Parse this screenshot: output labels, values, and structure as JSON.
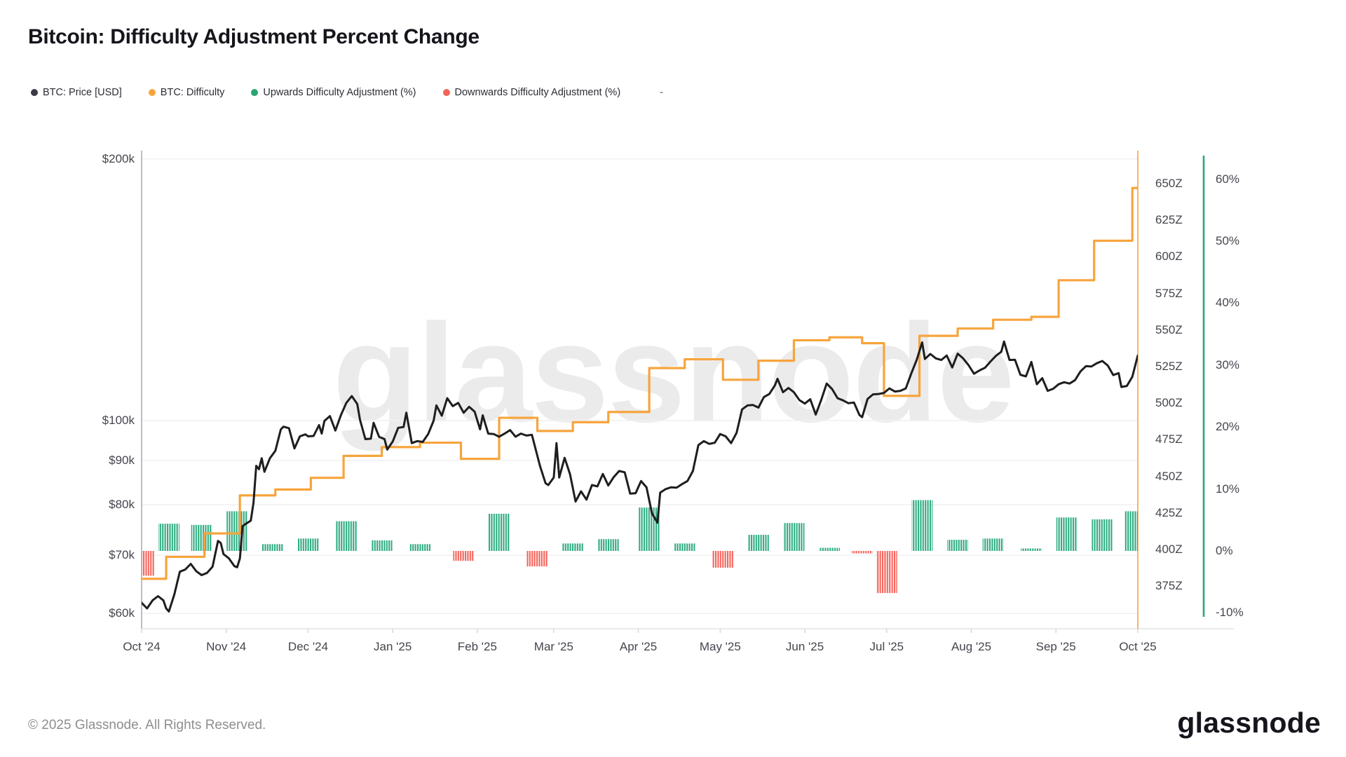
{
  "title": "Bitcoin: Difficulty Adjustment Percent Change",
  "legend": {
    "items": [
      {
        "label": "BTC: Price [USD]",
        "color": "#3a3a42"
      },
      {
        "label": "BTC: Difficulty",
        "color": "#F7A43C"
      },
      {
        "label": "Upwards Difficulty Adjustment (%)",
        "color": "#27A671"
      },
      {
        "label": "Downwards Difficulty Adjustment (%)",
        "color": "#F4635A"
      }
    ],
    "extra": "-"
  },
  "watermark": "glassnode",
  "footer": {
    "copyright": "© 2025 Glassnode. All Rights Reserved.",
    "brand": "glassnode"
  },
  "chart_data": {
    "type": "composite",
    "title": "Bitcoin: Difficulty Adjustment Percent Change",
    "x_axis": {
      "labels": [
        "Oct '24",
        "Nov '24",
        "Dec '24",
        "Jan '25",
        "Feb '25",
        "Mar '25",
        "Apr '25",
        "May '25",
        "Jun '25",
        "Jul '25",
        "Aug '25",
        "Sep '25",
        "Oct '25"
      ],
      "days": [
        0,
        31,
        61,
        92,
        123,
        151,
        182,
        212,
        243,
        273,
        304,
        335,
        365
      ],
      "start_date": "2024-10-01",
      "end_date": "2025-10-03"
    },
    "price_axis": {
      "scale": "log",
      "ticks": [
        {
          "label": "$200k",
          "value": 200
        },
        {
          "label": "$100k",
          "value": 100
        },
        {
          "label": "$90k",
          "value": 90
        },
        {
          "label": "$80k",
          "value": 80
        },
        {
          "label": "$70k",
          "value": 70
        },
        {
          "label": "$60k",
          "value": 60
        }
      ]
    },
    "difficulty_axis": {
      "unit": "Z",
      "ticks": [
        650,
        625,
        600,
        575,
        550,
        525,
        500,
        475,
        450,
        425,
        400,
        375
      ]
    },
    "percent_axis": {
      "unit": "%",
      "ticks": [
        60,
        50,
        40,
        30,
        20,
        10,
        0,
        -10
      ]
    },
    "series": {
      "price": {
        "name": "BTC: Price [USD]",
        "color": "#1e1e1e",
        "unit": "$k",
        "points": [
          [
            0,
            61.7
          ],
          [
            2,
            60.8
          ],
          [
            4,
            62.1
          ],
          [
            6,
            62.8
          ],
          [
            8,
            62.1
          ],
          [
            9,
            60.8
          ],
          [
            10,
            60.3
          ],
          [
            12,
            63.1
          ],
          [
            14,
            67.0
          ],
          [
            16,
            67.4
          ],
          [
            18,
            68.4
          ],
          [
            20,
            67.1
          ],
          [
            22,
            66.4
          ],
          [
            24,
            66.8
          ],
          [
            26,
            67.9
          ],
          [
            28,
            72.7
          ],
          [
            29,
            72.3
          ],
          [
            30,
            70.2
          ],
          [
            32,
            69.4
          ],
          [
            34,
            68.0
          ],
          [
            35,
            67.8
          ],
          [
            36,
            69.4
          ],
          [
            37,
            75.6
          ],
          [
            38,
            76.0
          ],
          [
            40,
            76.7
          ],
          [
            41,
            80.4
          ],
          [
            42,
            88.7
          ],
          [
            43,
            87.9
          ],
          [
            44,
            90.5
          ],
          [
            45,
            87.3
          ],
          [
            47,
            90.5
          ],
          [
            49,
            92.3
          ],
          [
            51,
            97.7
          ],
          [
            52,
            98.4
          ],
          [
            54,
            98.0
          ],
          [
            56,
            92.9
          ],
          [
            58,
            95.9
          ],
          [
            60,
            96.4
          ],
          [
            61,
            95.9
          ],
          [
            63,
            96.0
          ],
          [
            65,
            98.8
          ],
          [
            66,
            96.6
          ],
          [
            67,
            99.9
          ],
          [
            69,
            101.2
          ],
          [
            71,
            97.4
          ],
          [
            73,
            101.4
          ],
          [
            75,
            104.8
          ],
          [
            77,
            106.7
          ],
          [
            79,
            104.5
          ],
          [
            80,
            100.2
          ],
          [
            82,
            95.2
          ],
          [
            84,
            95.3
          ],
          [
            85,
            99.4
          ],
          [
            87,
            95.8
          ],
          [
            89,
            95.2
          ],
          [
            90,
            92.6
          ],
          [
            92,
            94.6
          ],
          [
            94,
            98.1
          ],
          [
            96,
            98.3
          ],
          [
            97,
            102.1
          ],
          [
            99,
            94.2
          ],
          [
            101,
            94.7
          ],
          [
            103,
            94.5
          ],
          [
            105,
            96.5
          ],
          [
            107,
            100.0
          ],
          [
            108,
            104.1
          ],
          [
            110,
            101.3
          ],
          [
            112,
            106.1
          ],
          [
            114,
            103.9
          ],
          [
            116,
            104.8
          ],
          [
            118,
            102.1
          ],
          [
            120,
            103.7
          ],
          [
            122,
            102.4
          ],
          [
            124,
            97.7
          ],
          [
            125,
            101.4
          ],
          [
            127,
            96.6
          ],
          [
            129,
            96.5
          ],
          [
            131,
            95.8
          ],
          [
            133,
            96.6
          ],
          [
            135,
            97.5
          ],
          [
            137,
            95.8
          ],
          [
            139,
            96.6
          ],
          [
            141,
            96.1
          ],
          [
            143,
            96.3
          ],
          [
            146,
            88.6
          ],
          [
            148,
            84.7
          ],
          [
            149,
            84.3
          ],
          [
            151,
            86.0
          ],
          [
            152,
            94.2
          ],
          [
            153,
            86.0
          ],
          [
            155,
            90.6
          ],
          [
            157,
            86.7
          ],
          [
            159,
            80.7
          ],
          [
            161,
            82.9
          ],
          [
            163,
            81.1
          ],
          [
            165,
            84.3
          ],
          [
            167,
            84.0
          ],
          [
            169,
            86.8
          ],
          [
            171,
            84.2
          ],
          [
            173,
            86.1
          ],
          [
            175,
            87.5
          ],
          [
            177,
            87.2
          ],
          [
            179,
            82.4
          ],
          [
            181,
            82.5
          ],
          [
            183,
            85.2
          ],
          [
            185,
            83.8
          ],
          [
            187,
            78.2
          ],
          [
            189,
            76.3
          ],
          [
            190,
            82.6
          ],
          [
            192,
            83.4
          ],
          [
            194,
            83.8
          ],
          [
            196,
            83.7
          ],
          [
            198,
            84.5
          ],
          [
            200,
            85.2
          ],
          [
            202,
            87.5
          ],
          [
            204,
            93.7
          ],
          [
            206,
            94.7
          ],
          [
            208,
            94.0
          ],
          [
            210,
            94.3
          ],
          [
            212,
            96.5
          ],
          [
            214,
            95.9
          ],
          [
            216,
            94.2
          ],
          [
            218,
            96.8
          ],
          [
            220,
            103.0
          ],
          [
            222,
            104.1
          ],
          [
            224,
            104.2
          ],
          [
            226,
            103.5
          ],
          [
            228,
            106.4
          ],
          [
            230,
            107.3
          ],
          [
            232,
            109.7
          ],
          [
            233,
            111.7
          ],
          [
            235,
            107.8
          ],
          [
            237,
            109.0
          ],
          [
            239,
            107.8
          ],
          [
            241,
            105.6
          ],
          [
            243,
            104.6
          ],
          [
            245,
            105.8
          ],
          [
            247,
            101.6
          ],
          [
            249,
            105.6
          ],
          [
            251,
            110.3
          ],
          [
            253,
            108.7
          ],
          [
            255,
            106.1
          ],
          [
            257,
            105.5
          ],
          [
            259,
            104.7
          ],
          [
            261,
            104.9
          ],
          [
            263,
            101.5
          ],
          [
            264,
            100.9
          ],
          [
            266,
            105.9
          ],
          [
            268,
            107.2
          ],
          [
            270,
            107.3
          ],
          [
            272,
            107.6
          ],
          [
            274,
            108.9
          ],
          [
            276,
            108.0
          ],
          [
            278,
            108.2
          ],
          [
            280,
            108.9
          ],
          [
            282,
            113.3
          ],
          [
            284,
            117.5
          ],
          [
            286,
            123.0
          ],
          [
            287,
            117.7
          ],
          [
            289,
            119.3
          ],
          [
            291,
            117.9
          ],
          [
            293,
            117.4
          ],
          [
            295,
            118.8
          ],
          [
            297,
            115.1
          ],
          [
            299,
            119.4
          ],
          [
            301,
            117.9
          ],
          [
            303,
            115.8
          ],
          [
            305,
            113.2
          ],
          [
            307,
            114.2
          ],
          [
            309,
            115.0
          ],
          [
            311,
            116.9
          ],
          [
            313,
            118.7
          ],
          [
            315,
            120.0
          ],
          [
            316,
            123.3
          ],
          [
            318,
            117.4
          ],
          [
            320,
            117.5
          ],
          [
            322,
            112.9
          ],
          [
            324,
            112.4
          ],
          [
            326,
            116.8
          ],
          [
            328,
            110.1
          ],
          [
            330,
            111.9
          ],
          [
            332,
            108.2
          ],
          [
            334,
            108.8
          ],
          [
            336,
            110.1
          ],
          [
            338,
            110.7
          ],
          [
            340,
            110.3
          ],
          [
            342,
            111.3
          ],
          [
            344,
            113.9
          ],
          [
            346,
            115.5
          ],
          [
            348,
            115.4
          ],
          [
            350,
            116.4
          ],
          [
            352,
            117.1
          ],
          [
            354,
            115.7
          ],
          [
            356,
            112.8
          ],
          [
            358,
            113.4
          ],
          [
            359,
            109.3
          ],
          [
            361,
            109.6
          ],
          [
            363,
            112.3
          ],
          [
            365,
            118.8
          ]
        ]
      },
      "difficulty": {
        "name": "BTC: Difficulty",
        "color": "#F7A43C",
        "unit": "Z",
        "steps": [
          [
            0,
            380
          ],
          [
            9,
            395
          ],
          [
            23,
            411
          ],
          [
            36,
            437
          ],
          [
            49,
            441
          ],
          [
            62,
            449
          ],
          [
            74,
            464
          ],
          [
            88,
            470
          ],
          [
            102,
            473
          ],
          [
            117,
            462
          ],
          [
            131,
            490
          ],
          [
            145,
            481
          ],
          [
            158,
            487
          ],
          [
            171,
            494
          ],
          [
            186,
            524
          ],
          [
            199,
            530
          ],
          [
            213,
            516
          ],
          [
            226,
            529
          ],
          [
            239,
            543
          ],
          [
            252,
            545
          ],
          [
            264,
            541
          ],
          [
            272,
            505
          ],
          [
            285,
            546
          ],
          [
            299,
            551
          ],
          [
            312,
            557
          ],
          [
            326,
            559
          ],
          [
            336,
            584
          ],
          [
            349,
            611
          ],
          [
            363,
            647
          ]
        ]
      },
      "adjustments": {
        "up_name": "Upwards Difficulty Adjustment (%)",
        "up_color": "#2EAC80",
        "down_name": "Downwards Difficulty Adjustment (%)",
        "down_color": "#F4655C",
        "bars": [
          [
            1,
            -4.0
          ],
          [
            10,
            4.4
          ],
          [
            22,
            4.2
          ],
          [
            35,
            6.4
          ],
          [
            48,
            1.1
          ],
          [
            61,
            2.0
          ],
          [
            75,
            4.8
          ],
          [
            88,
            1.7
          ],
          [
            102,
            1.1
          ],
          [
            118,
            -1.6
          ],
          [
            131,
            6.0
          ],
          [
            145,
            -2.5
          ],
          [
            158,
            1.2
          ],
          [
            171,
            1.9
          ],
          [
            186,
            7.0
          ],
          [
            199,
            1.2
          ],
          [
            213,
            -2.7
          ],
          [
            226,
            2.6
          ],
          [
            239,
            4.5
          ],
          [
            252,
            0.5
          ],
          [
            264,
            -0.4
          ],
          [
            273,
            -6.8
          ],
          [
            286,
            8.2
          ],
          [
            299,
            1.8
          ],
          [
            312,
            2.0
          ],
          [
            326,
            0.4
          ],
          [
            339,
            5.4
          ],
          [
            352,
            5.1
          ],
          [
            364,
            6.4
          ]
        ]
      }
    },
    "layout_hints": {
      "grid": "horizontal-faint",
      "legend_position": "top-left",
      "watermark": "center"
    }
  }
}
